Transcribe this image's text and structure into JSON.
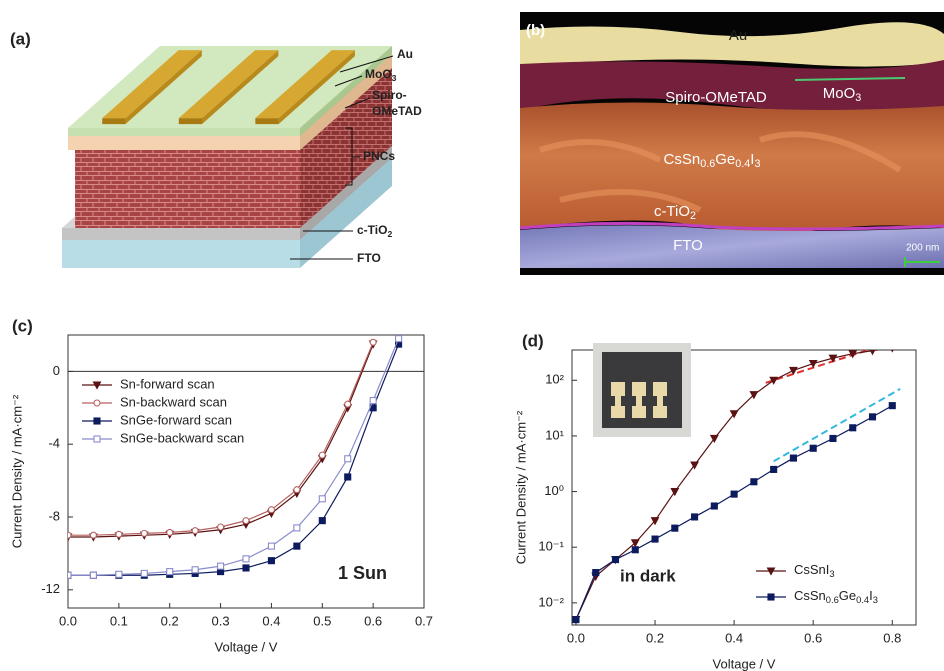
{
  "diagram": {
    "panel_label": "(a)",
    "labels": [
      "Au",
      "MoO3",
      "Spiro-",
      "OMeTAD",
      "PNCs",
      "c-TiO2",
      "FTO"
    ]
  },
  "micrograph": {
    "panel_label": "(b)",
    "labels": [
      "Au",
      "Spiro-OMeTAD",
      "MoO3",
      "CsSn0.6Ge0.4I3",
      "c-TiO2",
      "FTO"
    ],
    "scale_bar": "200 nm"
  },
  "chart_data": [
    {
      "type": "line",
      "panel_label": "(c)",
      "xlabel": "Voltage / V",
      "ylabel": "Current Density / mA·cm⁻²",
      "annotation": "1 Sun",
      "x": [
        0,
        0.05,
        0.1,
        0.15,
        0.2,
        0.25,
        0.3,
        0.35,
        0.4,
        0.45,
        0.5,
        0.55,
        0.6,
        0.65
      ],
      "series": [
        {
          "name": "Sn-forward scan",
          "color": "#5a1212",
          "marker": "triangle-down",
          "filled": true,
          "values": [
            -9.1,
            -9.1,
            -9.05,
            -9.0,
            -8.95,
            -8.85,
            -8.7,
            -8.4,
            -7.8,
            -6.7,
            -4.8,
            -2.0,
            1.5,
            null
          ]
        },
        {
          "name": "Sn-backward scan",
          "color": "#b76060",
          "marker": "circle",
          "filled": false,
          "values": [
            -9.0,
            -9.0,
            -8.95,
            -8.9,
            -8.85,
            -8.75,
            -8.55,
            -8.2,
            -7.6,
            -6.5,
            -4.6,
            -1.8,
            1.6,
            null
          ]
        },
        {
          "name": "SnGe-forward scan",
          "color": "#0c1a5e",
          "marker": "square",
          "filled": true,
          "values": [
            -11.2,
            -11.2,
            -11.2,
            -11.2,
            -11.15,
            -11.1,
            -11.0,
            -10.8,
            -10.4,
            -9.6,
            -8.2,
            -5.8,
            -2.0,
            1.5
          ]
        },
        {
          "name": "SnGe-backward scan",
          "color": "#8a8ccc",
          "marker": "square",
          "filled": false,
          "values": [
            -11.2,
            -11.2,
            -11.15,
            -11.1,
            -11.0,
            -10.9,
            -10.7,
            -10.3,
            -9.6,
            -8.6,
            -7.0,
            -4.8,
            -1.6,
            1.8
          ]
        }
      ],
      "xlim": [
        0,
        0.7
      ],
      "xticks": [
        {
          "value": 0,
          "label": "0.0"
        },
        0.1,
        0.2,
        0.3,
        0.4,
        0.5,
        0.6,
        0.7
      ],
      "ylim": [
        -13,
        2
      ],
      "yticks": [
        -12,
        -8,
        -4,
        0
      ],
      "zero_line": true,
      "legend": "upper left"
    },
    {
      "type": "line",
      "panel_label": "(d)",
      "xlabel": "Voltage / V",
      "ylabel": "Current Density / mA·cm⁻²",
      "annotation": "in dark",
      "log_y": true,
      "x": [
        0,
        0.05,
        0.1,
        0.15,
        0.2,
        0.25,
        0.3,
        0.35,
        0.4,
        0.45,
        0.5,
        0.55,
        0.6,
        0.65,
        0.7,
        0.75,
        0.8
      ],
      "series": [
        {
          "name": "CsSnI3",
          "color": "#5a1212",
          "marker": "triangle-down",
          "filled": true,
          "values": [
            0.005,
            0.03,
            0.06,
            0.12,
            0.3,
            1.0,
            3.0,
            9,
            25,
            55,
            100,
            150,
            200,
            250,
            300,
            340,
            380
          ]
        },
        {
          "name": "CsSn0.6Ge0.4I3",
          "color": "#0c1a5e",
          "marker": "square",
          "filled": true,
          "values": [
            0.005,
            0.035,
            0.06,
            0.09,
            0.14,
            0.22,
            0.35,
            0.55,
            0.9,
            1.5,
            2.5,
            4,
            6,
            9,
            14,
            22,
            35
          ]
        }
      ],
      "fit_lines": [
        {
          "color": "#e03030",
          "x": [
            0.48,
            0.8
          ],
          "values": [
            90,
            480
          ]
        },
        {
          "color": "#33b8e0",
          "x": [
            0.5,
            0.82
          ],
          "values": [
            3.5,
            70
          ]
        }
      ],
      "xlim": [
        -0.01,
        0.86
      ],
      "xticks": [
        {
          "value": 0,
          "label": "0.0"
        },
        0.2,
        0.4,
        0.6,
        0.8
      ],
      "ylim": [
        0.004,
        350
      ],
      "yticks": [
        {
          "value": 0.01,
          "label": "10⁻²"
        },
        {
          "value": 0.1,
          "label": "10⁻¹"
        },
        {
          "value": 1,
          "label": "10⁰"
        },
        {
          "value": 10,
          "label": "10¹"
        },
        {
          "value": 100,
          "label": "10²"
        }
      ],
      "legend": "lower right"
    }
  ]
}
